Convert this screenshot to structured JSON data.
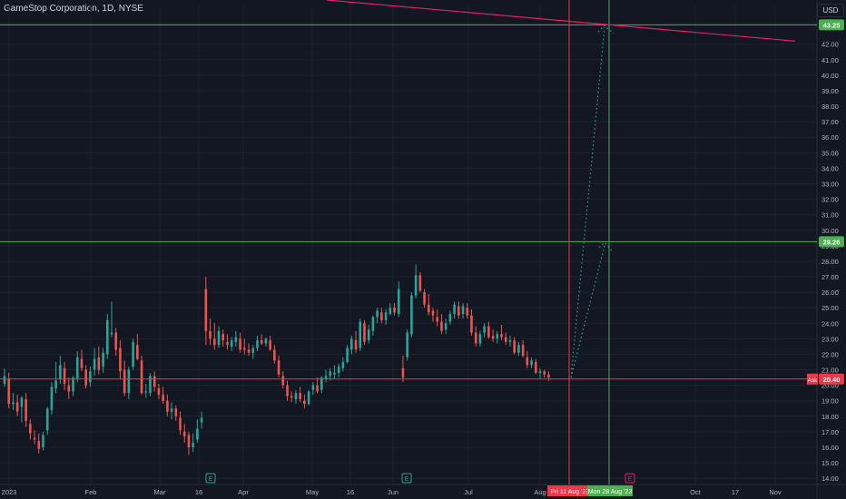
{
  "header": {
    "title": "GameStop Corporation, 1D, NYSE",
    "currency": "USD"
  },
  "colors": {
    "background": "#131722",
    "up": "#26a69a",
    "down": "#ef5350",
    "grid": "#1e222d",
    "hline_green": "#4caf50",
    "hline_red": "#f23645",
    "trend": "#e91e63",
    "text": "#b2b5be"
  },
  "chart_data": {
    "type": "candlestick",
    "y_axis": {
      "ticks": [
        "14.00",
        "15.00",
        "16.00",
        "17.00",
        "18.00",
        "19.00",
        "20.00",
        "21.00",
        "22.00",
        "23.00",
        "24.00",
        "25.00",
        "26.00",
        "27.00",
        "28.00",
        "29.00",
        "30.00",
        "31.00",
        "32.00",
        "33.00",
        "34.00",
        "35.00",
        "36.00",
        "37.00",
        "38.00",
        "39.00",
        "40.00",
        "41.00",
        "42.00"
      ],
      "range": [
        13.6,
        44.5
      ]
    },
    "x_axis": {
      "ticks": [
        "2023",
        "Feb",
        "Mar",
        "16",
        "Apr",
        "May",
        "16",
        "Jun",
        "Jul",
        "Aug",
        "Oct",
        "17",
        "Nov"
      ]
    },
    "horizontal_lines": [
      {
        "price": 43.25,
        "label": "43.25",
        "color": "green"
      },
      {
        "price": 29.26,
        "label": "29.26",
        "color": "green"
      },
      {
        "price": 20.4,
        "label": "Ask 20.40",
        "color": "red"
      }
    ],
    "vertical_markers": [
      {
        "label": "Fri 11 Aug '23",
        "color": "red"
      },
      {
        "label": "Mon 28 Aug '23",
        "color": "green"
      }
    ],
    "earnings_markers": [
      "E",
      "E",
      "E"
    ],
    "ask_label": "Ask",
    "ask_value": "20.40",
    "candles": [
      [
        20.1,
        21.1,
        19.9,
        20.6
      ],
      [
        20.4,
        20.8,
        18.5,
        18.8
      ],
      [
        18.8,
        19.5,
        18.4,
        18.9
      ],
      [
        18.9,
        19.4,
        18.0,
        18.3
      ],
      [
        18.6,
        19.3,
        17.6,
        19.2
      ],
      [
        19.1,
        19.5,
        17.3,
        17.7
      ],
      [
        17.5,
        17.8,
        16.5,
        16.9
      ],
      [
        16.6,
        17.1,
        16.2,
        16.5
      ],
      [
        16.4,
        16.9,
        15.6,
        15.9
      ],
      [
        16.0,
        17.0,
        15.8,
        16.8
      ],
      [
        17.1,
        18.6,
        16.8,
        18.5
      ],
      [
        18.4,
        20.2,
        18.1,
        19.9
      ],
      [
        19.8,
        21.5,
        19.5,
        20.3
      ],
      [
        20.4,
        21.9,
        20.1,
        21.3
      ],
      [
        21.1,
        21.5,
        19.7,
        20.1
      ],
      [
        20.0,
        20.5,
        19.1,
        19.6
      ],
      [
        19.6,
        20.6,
        19.3,
        20.5
      ],
      [
        20.4,
        22.2,
        20.2,
        21.8
      ],
      [
        21.7,
        22.3,
        20.9,
        21.1
      ],
      [
        21.0,
        21.3,
        19.8,
        20.0
      ],
      [
        20.2,
        21.2,
        19.9,
        20.9
      ],
      [
        21.0,
        22.4,
        20.6,
        21.7
      ],
      [
        21.8,
        22.5,
        20.7,
        21.0
      ],
      [
        21.2,
        22.4,
        20.8,
        22.1
      ],
      [
        22.0,
        24.6,
        21.7,
        24.2
      ],
      [
        23.3,
        25.4,
        23.1,
        23.4
      ],
      [
        23.4,
        23.7,
        21.9,
        22.3
      ],
      [
        22.4,
        22.9,
        20.4,
        20.9
      ],
      [
        21.0,
        21.6,
        19.3,
        19.5
      ],
      [
        19.5,
        21.2,
        19.1,
        21.0
      ],
      [
        21.2,
        23.0,
        21.0,
        22.8
      ],
      [
        22.6,
        23.3,
        21.6,
        21.7
      ],
      [
        21.6,
        21.9,
        19.4,
        19.5
      ],
      [
        19.6,
        20.1,
        19.2,
        19.6
      ],
      [
        19.5,
        20.8,
        19.3,
        20.6
      ],
      [
        20.6,
        20.9,
        19.6,
        19.9
      ],
      [
        19.8,
        20.1,
        19.1,
        19.4
      ],
      [
        19.4,
        19.9,
        18.8,
        19.0
      ],
      [
        19.0,
        19.4,
        18.0,
        18.3
      ],
      [
        18.3,
        18.9,
        17.8,
        18.5
      ],
      [
        18.5,
        18.7,
        17.7,
        18.0
      ],
      [
        17.9,
        18.3,
        16.8,
        17.1
      ],
      [
        17.0,
        17.5,
        16.3,
        16.7
      ],
      [
        16.8,
        17.0,
        15.5,
        16.0
      ],
      [
        16.0,
        16.9,
        15.7,
        16.3
      ],
      [
        16.5,
        17.8,
        16.3,
        17.2
      ],
      [
        17.6,
        18.3,
        17.2,
        17.9
      ],
      [
        26.2,
        27.0,
        22.6,
        23.5
      ],
      [
        23.5,
        24.3,
        22.6,
        23.0
      ],
      [
        23.0,
        24.0,
        22.3,
        22.6
      ],
      [
        22.6,
        23.8,
        22.4,
        23.5
      ],
      [
        23.3,
        23.6,
        22.5,
        22.9
      ],
      [
        22.8,
        23.3,
        22.3,
        22.6
      ],
      [
        22.5,
        23.1,
        22.2,
        22.9
      ],
      [
        22.8,
        23.5,
        22.5,
        23.1
      ],
      [
        23.0,
        23.4,
        22.1,
        22.3
      ],
      [
        22.4,
        23.0,
        22.0,
        22.3
      ],
      [
        22.3,
        22.7,
        21.9,
        22.1
      ],
      [
        22.1,
        22.6,
        21.7,
        22.4
      ],
      [
        22.4,
        23.2,
        22.2,
        22.9
      ],
      [
        22.9,
        23.3,
        22.6,
        22.7
      ],
      [
        22.7,
        23.1,
        22.5,
        23.0
      ],
      [
        22.9,
        23.2,
        22.2,
        22.3
      ],
      [
        22.3,
        22.6,
        21.4,
        21.6
      ],
      [
        21.6,
        21.9,
        20.5,
        20.7
      ],
      [
        20.6,
        20.9,
        19.8,
        20.0
      ],
      [
        20.0,
        20.3,
        19.0,
        19.3
      ],
      [
        19.3,
        19.6,
        18.9,
        19.2
      ],
      [
        19.1,
        19.7,
        18.8,
        19.5
      ],
      [
        19.5,
        19.9,
        18.9,
        19.1
      ],
      [
        19.0,
        19.4,
        18.5,
        18.8
      ],
      [
        18.8,
        19.7,
        18.7,
        19.6
      ],
      [
        19.7,
        20.2,
        19.4,
        20.0
      ],
      [
        20.0,
        20.5,
        19.5,
        19.6
      ],
      [
        19.7,
        20.6,
        19.5,
        20.5
      ],
      [
        20.4,
        21.0,
        20.2,
        20.6
      ],
      [
        20.6,
        21.1,
        20.3,
        20.9
      ],
      [
        20.7,
        21.3,
        20.4,
        20.8
      ],
      [
        20.8,
        21.4,
        20.5,
        21.2
      ],
      [
        21.1,
        21.8,
        20.9,
        21.5
      ],
      [
        21.5,
        22.6,
        21.4,
        22.4
      ],
      [
        22.3,
        23.2,
        22.0,
        23.0
      ],
      [
        22.9,
        23.5,
        22.1,
        22.3
      ],
      [
        22.4,
        24.3,
        22.2,
        24.1
      ],
      [
        24.0,
        24.2,
        22.6,
        22.8
      ],
      [
        22.9,
        23.9,
        22.7,
        23.6
      ],
      [
        23.5,
        24.5,
        23.2,
        24.4
      ],
      [
        24.4,
        25.0,
        24.0,
        24.8
      ],
      [
        24.7,
        25.0,
        24.0,
        24.2
      ],
      [
        24.2,
        24.9,
        23.9,
        24.7
      ],
      [
        24.6,
        25.3,
        24.5,
        25.0
      ],
      [
        25.0,
        25.3,
        24.5,
        24.7
      ],
      [
        24.6,
        26.7,
        24.4,
        26.2
      ],
      [
        21.1,
        21.9,
        20.2,
        20.5
      ],
      [
        21.8,
        23.6,
        21.6,
        23.4
      ],
      [
        23.3,
        26.0,
        23.1,
        25.8
      ],
      [
        25.8,
        27.8,
        25.6,
        27.1
      ],
      [
        27.1,
        27.3,
        26.0,
        26.1
      ],
      [
        26.0,
        26.2,
        25.0,
        25.2
      ],
      [
        25.2,
        25.9,
        24.5,
        24.7
      ],
      [
        24.8,
        25.0,
        24.1,
        24.5
      ],
      [
        24.4,
        24.9,
        23.8,
        24.1
      ],
      [
        24.1,
        24.6,
        23.3,
        23.5
      ],
      [
        23.6,
        24.3,
        23.3,
        24.0
      ],
      [
        24.1,
        24.8,
        23.9,
        24.6
      ],
      [
        24.6,
        25.4,
        24.3,
        25.2
      ],
      [
        25.1,
        25.4,
        24.3,
        24.5
      ],
      [
        24.6,
        25.3,
        24.3,
        25.1
      ],
      [
        25.0,
        25.3,
        24.3,
        24.5
      ],
      [
        24.5,
        24.9,
        23.2,
        23.4
      ],
      [
        23.4,
        23.8,
        22.5,
        22.7
      ],
      [
        22.7,
        23.5,
        22.5,
        23.3
      ],
      [
        23.4,
        24.0,
        23.1,
        23.8
      ],
      [
        23.8,
        24.1,
        23.0,
        23.1
      ],
      [
        23.2,
        23.6,
        22.8,
        23.0
      ],
      [
        23.0,
        23.5,
        22.7,
        23.3
      ],
      [
        23.3,
        23.9,
        22.9,
        23.1
      ],
      [
        23.1,
        23.4,
        22.6,
        22.8
      ],
      [
        22.8,
        23.2,
        22.5,
        22.9
      ],
      [
        22.9,
        23.1,
        22.0,
        22.1
      ],
      [
        22.1,
        22.8,
        21.9,
        22.6
      ],
      [
        22.6,
        22.9,
        21.8,
        21.9
      ],
      [
        21.8,
        22.2,
        21.1,
        21.3
      ],
      [
        21.3,
        21.8,
        21.1,
        21.6
      ],
      [
        21.5,
        21.7,
        20.7,
        20.8
      ],
      [
        20.8,
        21.1,
        20.4,
        20.9
      ],
      [
        20.9,
        21.0,
        20.5,
        20.7
      ],
      [
        20.7,
        20.9,
        20.3,
        20.5
      ]
    ]
  }
}
